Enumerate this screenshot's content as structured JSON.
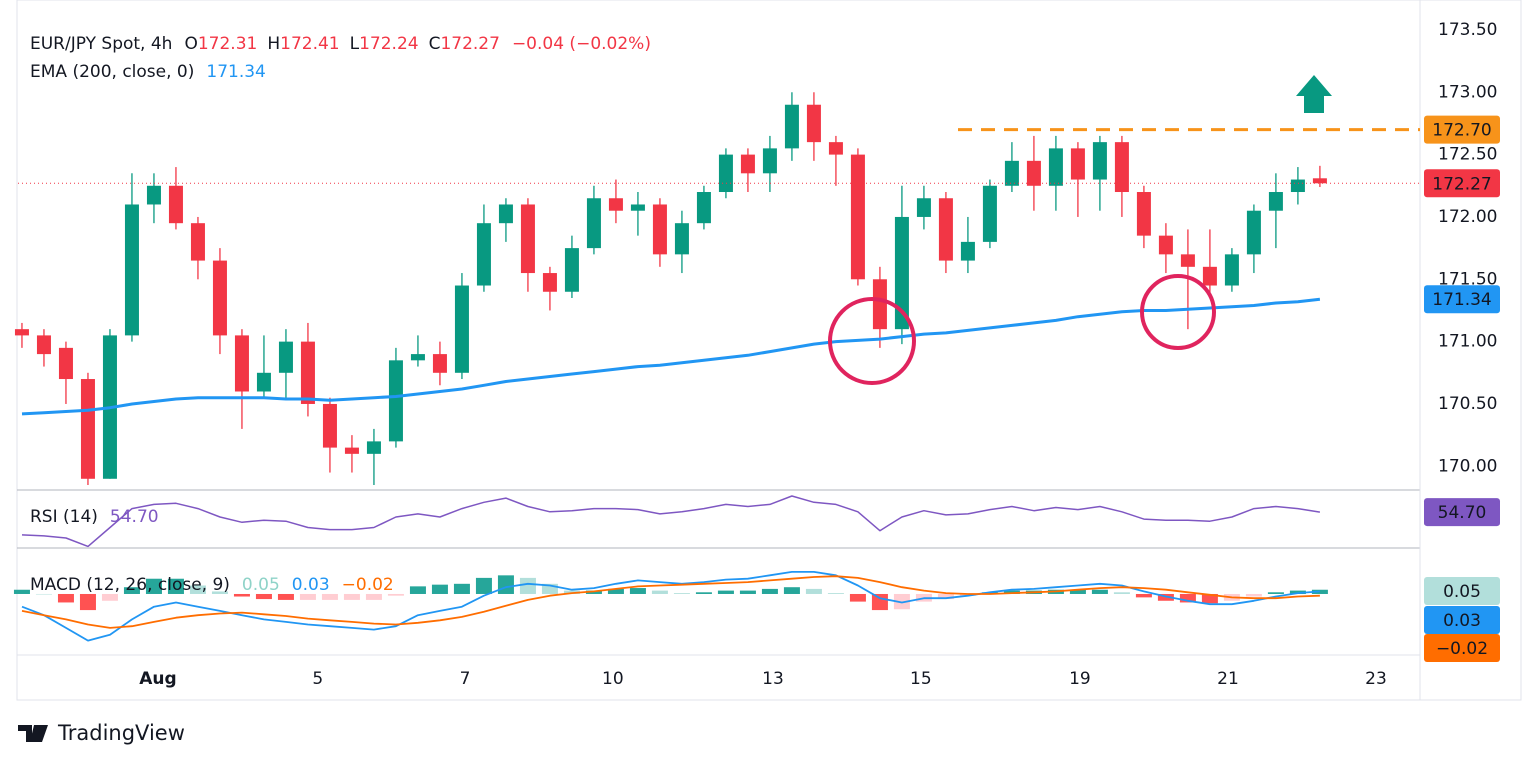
{
  "chart_data": [
    {
      "type": "candlestick",
      "header": {
        "symbol": "EUR/JPY Spot, 4h",
        "ohlc_labels": [
          "O",
          "H",
          "L",
          "C"
        ],
        "open": 172.31,
        "high": 172.41,
        "low": 172.24,
        "close": 172.27,
        "change": "−0.04 (−0.02%)"
      },
      "up_color": "#089981",
      "down_color": "#f23645",
      "x": [
        0,
        1,
        2,
        3,
        4,
        5,
        6,
        7,
        8,
        9,
        10,
        11,
        12,
        13,
        14,
        15,
        16,
        17,
        18,
        19,
        20,
        21,
        22,
        23,
        24,
        25,
        26,
        27,
        28,
        29,
        30,
        31,
        32,
        33,
        34,
        35,
        36,
        37,
        38,
        39,
        40,
        41,
        42,
        43,
        44,
        45,
        46,
        47,
        48,
        49,
        50,
        51,
        52,
        53,
        54,
        55,
        56,
        57,
        58,
        59
      ],
      "open": [
        171.1,
        171.05,
        170.95,
        170.7,
        169.9,
        171.05,
        172.1,
        172.25,
        171.95,
        171.65,
        171.05,
        170.6,
        170.75,
        171.0,
        170.5,
        170.15,
        170.1,
        170.2,
        170.85,
        170.9,
        170.75,
        171.45,
        171.95,
        172.1,
        171.55,
        171.4,
        171.75,
        172.15,
        172.05,
        172.1,
        171.7,
        171.95,
        172.2,
        172.5,
        172.35,
        172.55,
        172.9,
        172.6,
        172.5,
        171.5,
        171.1,
        172.0,
        172.15,
        171.65,
        171.8,
        172.25,
        172.45,
        172.25,
        172.55,
        172.3,
        172.6,
        172.2,
        171.85,
        171.7,
        171.6,
        171.45,
        171.7,
        172.05,
        172.2,
        172.31
      ],
      "high": [
        171.15,
        171.1,
        171.0,
        170.75,
        171.1,
        172.35,
        172.35,
        172.4,
        172.0,
        171.75,
        171.1,
        171.05,
        171.1,
        171.15,
        170.55,
        170.25,
        170.3,
        170.95,
        171.05,
        171.0,
        171.55,
        172.1,
        172.15,
        172.15,
        171.6,
        171.85,
        172.25,
        172.3,
        172.2,
        172.15,
        172.05,
        172.25,
        172.55,
        172.55,
        172.65,
        173.0,
        173.0,
        172.65,
        172.55,
        171.6,
        172.25,
        172.25,
        172.2,
        172.0,
        172.3,
        172.6,
        172.65,
        172.65,
        172.6,
        172.65,
        172.65,
        172.25,
        171.95,
        171.9,
        171.9,
        171.75,
        172.1,
        172.35,
        172.4,
        172.41
      ],
      "low": [
        170.95,
        170.8,
        170.5,
        169.85,
        169.9,
        171.0,
        171.95,
        171.9,
        171.5,
        170.9,
        170.3,
        170.55,
        170.55,
        170.4,
        169.95,
        169.95,
        169.85,
        170.15,
        170.8,
        170.65,
        170.7,
        171.4,
        171.8,
        171.4,
        171.25,
        171.35,
        171.7,
        171.95,
        171.85,
        171.6,
        171.55,
        171.9,
        172.15,
        172.2,
        172.2,
        172.45,
        172.45,
        172.25,
        171.45,
        170.95,
        170.98,
        171.9,
        171.55,
        171.55,
        171.75,
        172.2,
        172.05,
        172.05,
        172.0,
        172.05,
        172.0,
        171.75,
        171.55,
        171.1,
        171.35,
        171.4,
        171.55,
        171.75,
        172.1,
        172.24
      ],
      "close": [
        171.05,
        170.9,
        170.7,
        169.9,
        171.05,
        172.1,
        172.25,
        171.95,
        171.65,
        171.05,
        170.6,
        170.75,
        171.0,
        170.5,
        170.15,
        170.1,
        170.2,
        170.85,
        170.9,
        170.75,
        171.45,
        171.95,
        172.1,
        171.55,
        171.4,
        171.75,
        172.15,
        172.05,
        172.1,
        171.7,
        171.95,
        172.2,
        172.5,
        172.35,
        172.55,
        172.9,
        172.6,
        172.5,
        171.5,
        171.1,
        172.0,
        172.15,
        171.65,
        171.8,
        172.25,
        172.45,
        172.25,
        172.55,
        172.3,
        172.6,
        172.2,
        171.85,
        171.7,
        171.6,
        171.45,
        171.7,
        172.05,
        172.2,
        172.3,
        172.27
      ],
      "ema": {
        "name": "EMA (200, close, 0)",
        "value": 171.34,
        "color": "#2196f3",
        "values": [
          170.42,
          170.43,
          170.44,
          170.45,
          170.47,
          170.5,
          170.52,
          170.54,
          170.55,
          170.55,
          170.55,
          170.55,
          170.54,
          170.54,
          170.53,
          170.54,
          170.55,
          170.56,
          170.58,
          170.6,
          170.62,
          170.65,
          170.68,
          170.7,
          170.72,
          170.74,
          170.76,
          170.78,
          170.8,
          170.81,
          170.83,
          170.85,
          170.87,
          170.89,
          170.92,
          170.95,
          170.98,
          171.0,
          171.01,
          171.02,
          171.04,
          171.06,
          171.07,
          171.09,
          171.11,
          171.13,
          171.15,
          171.17,
          171.2,
          171.22,
          171.24,
          171.25,
          171.25,
          171.26,
          171.27,
          171.28,
          171.29,
          171.31,
          171.32,
          171.34
        ]
      },
      "resistance": {
        "value": 172.7,
        "label": "172.70",
        "color": "#f7931a"
      },
      "xlim": [
        -0.18,
        63.55
      ],
      "xticks": [
        {
          "value": 6.18,
          "label": "Aug"
        },
        {
          "value": 13.45,
          "label": "5"
        },
        {
          "value": 20.14,
          "label": "7"
        },
        {
          "value": 26.86,
          "label": "10"
        },
        {
          "value": 34.14,
          "label": "13"
        },
        {
          "value": 40.86,
          "label": "15"
        },
        {
          "value": 48.09,
          "label": "19"
        },
        {
          "value": 54.82,
          "label": "21"
        },
        {
          "value": 61.55,
          "label": "23"
        }
      ],
      "ylim": [
        169.81,
        173.74
      ],
      "yticks": [
        {
          "value": 173.5,
          "label": "173.50"
        },
        {
          "value": 173,
          "label": "173.00"
        },
        {
          "value": 172.5,
          "label": "172.50"
        },
        {
          "value": 172,
          "label": "172.00"
        },
        {
          "value": 171.5,
          "label": "171.50"
        },
        {
          "value": 171,
          "label": "171.00"
        },
        {
          "value": 170.5,
          "label": "170.50"
        },
        {
          "value": 170,
          "label": "170.00"
        }
      ],
      "grid": true,
      "brand": "TradingView"
    },
    {
      "type": "rsi",
      "name": "RSI (14)",
      "value": {
        "value": 54.7,
        "label": "54.70"
      },
      "color": "#7e57c2",
      "values": [
        33,
        32,
        30,
        22,
        40,
        58,
        62,
        63,
        58,
        50,
        45,
        47,
        46,
        40,
        38,
        38,
        40,
        50,
        53,
        50,
        58,
        64,
        68,
        60,
        55,
        56,
        58,
        58,
        57,
        53,
        55,
        58,
        62,
        60,
        62,
        70,
        64,
        62,
        55,
        37,
        50,
        56,
        52,
        53,
        57,
        60,
        56,
        59,
        57,
        60,
        55,
        48,
        47,
        47,
        46,
        50,
        58,
        60,
        58,
        54.7
      ],
      "levels": [
        70,
        50,
        30
      ],
      "ylim": [
        20.5,
        75.7
      ]
    },
    {
      "type": "macd",
      "name": "MACD (12, 26, close, 9)",
      "histogram_value": 0.05,
      "macd_value": 0.03,
      "signal_value": {
        "value": -0.02,
        "label": "−0.02"
      },
      "histogram_colors": [
        "#26a69a",
        "#b2dfdb",
        "#ffcdd2",
        "#ff5252"
      ],
      "macd_color": "#2196f3",
      "signal_color": "#ff6d00",
      "histogram": [
        0.05,
        0,
        -0.1,
        -0.19,
        -0.08,
        0.08,
        0.18,
        0.18,
        0.1,
        0.03,
        -0.03,
        -0.06,
        -0.07,
        -0.07,
        -0.07,
        -0.07,
        -0.07,
        -0.02,
        0.09,
        0.11,
        0.12,
        0.19,
        0.22,
        0.19,
        0.12,
        0.04,
        0.04,
        0.06,
        0.07,
        0.04,
        0.01,
        0.02,
        0.04,
        0.04,
        0.06,
        0.08,
        0.06,
        0.01,
        -0.09,
        -0.19,
        -0.18,
        -0.09,
        -0.06,
        -0.02,
        0.02,
        0.04,
        0.04,
        0.05,
        0.05,
        0.05,
        0.02,
        -0.04,
        -0.08,
        -0.1,
        -0.11,
        -0.08,
        -0.03,
        0.02,
        0.04,
        0.05
      ],
      "macd": [
        -0.15,
        -0.25,
        -0.4,
        -0.55,
        -0.48,
        -0.3,
        -0.15,
        -0.1,
        -0.15,
        -0.2,
        -0.25,
        -0.3,
        -0.33,
        -0.36,
        -0.38,
        -0.4,
        -0.42,
        -0.38,
        -0.25,
        -0.2,
        -0.15,
        -0.02,
        0.08,
        0.12,
        0.1,
        0.05,
        0.07,
        0.12,
        0.16,
        0.14,
        0.12,
        0.14,
        0.17,
        0.18,
        0.22,
        0.26,
        0.26,
        0.22,
        0.1,
        -0.05,
        -0.1,
        -0.05,
        -0.05,
        -0.02,
        0.02,
        0.05,
        0.06,
        0.08,
        0.1,
        0.12,
        0.1,
        0.03,
        -0.03,
        -0.08,
        -0.12,
        -0.12,
        -0.08,
        -0.03,
        0.01,
        0.03
      ],
      "signal": [
        -0.2,
        -0.25,
        -0.3,
        -0.36,
        -0.4,
        -0.38,
        -0.33,
        -0.28,
        -0.25,
        -0.23,
        -0.22,
        -0.24,
        -0.26,
        -0.29,
        -0.31,
        -0.33,
        -0.35,
        -0.36,
        -0.34,
        -0.31,
        -0.27,
        -0.21,
        -0.14,
        -0.07,
        -0.02,
        0.01,
        0.03,
        0.06,
        0.09,
        0.1,
        0.11,
        0.12,
        0.13,
        0.14,
        0.16,
        0.18,
        0.2,
        0.21,
        0.19,
        0.14,
        0.08,
        0.04,
        0.01,
        0.0,
        0.0,
        0.01,
        0.02,
        0.03,
        0.05,
        0.07,
        0.08,
        0.07,
        0.05,
        0.02,
        -0.01,
        -0.04,
        -0.05,
        -0.05,
        -0.03,
        -0.02
      ],
      "ylim": [
        -0.72,
        0.46
      ]
    }
  ]
}
